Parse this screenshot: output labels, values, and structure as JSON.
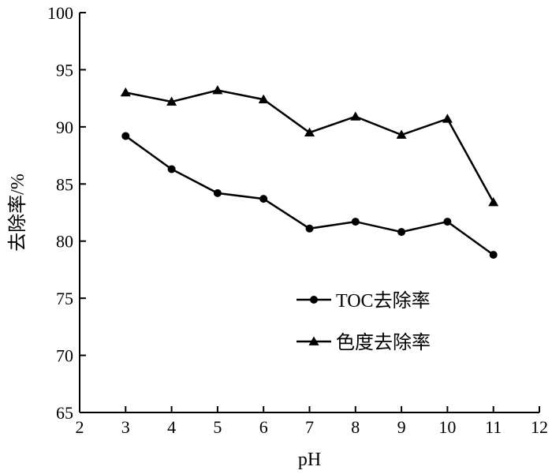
{
  "chart_data": {
    "type": "line",
    "xlabel": "pH",
    "ylabel": "去除率/%",
    "xlim": [
      2,
      12
    ],
    "ylim": [
      65,
      100
    ],
    "x_ticks": [
      2,
      3,
      4,
      5,
      6,
      7,
      8,
      9,
      10,
      11,
      12
    ],
    "y_ticks": [
      65,
      70,
      75,
      80,
      85,
      90,
      95,
      100
    ],
    "grid": false,
    "legend_position": "center-right",
    "x": [
      3,
      4,
      5,
      6,
      7,
      8,
      9,
      10,
      11
    ],
    "series": [
      {
        "name": "TOC去除率",
        "marker": "circle",
        "color": "#000000",
        "values": [
          89.2,
          86.3,
          84.2,
          83.7,
          81.1,
          81.7,
          80.8,
          81.7,
          78.8
        ]
      },
      {
        "name": "色度去除率",
        "marker": "triangle",
        "color": "#000000",
        "values": [
          93.0,
          92.2,
          93.2,
          92.4,
          89.5,
          90.9,
          89.3,
          90.7,
          83.4
        ]
      }
    ]
  }
}
